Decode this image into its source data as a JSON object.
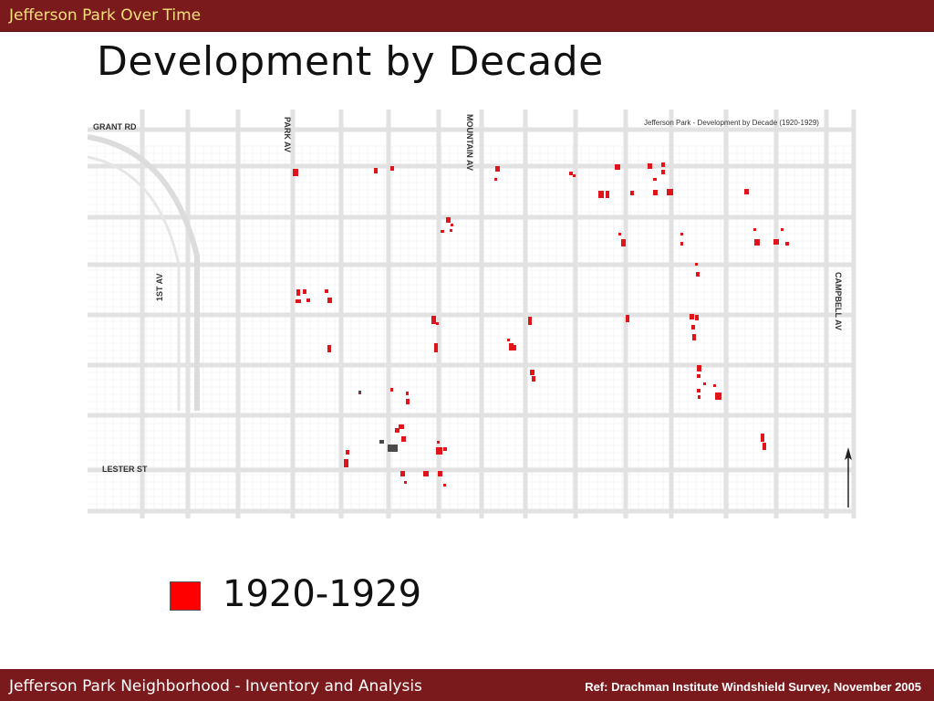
{
  "header": {
    "title": "Jefferson Park Over Time"
  },
  "slide": {
    "title": "Development by Decade"
  },
  "map": {
    "caption": "Jefferson Park - Development by Decade (1920-1929)",
    "streets": {
      "grant_rd": "GRANT RD",
      "park_av": "PARK AV",
      "mountain_av": "MOUNTAIN AV",
      "first_av": "1ST AV",
      "campbell_av": "CAMPBELL AV",
      "lester_st": "LESTER ST"
    },
    "highlight_color": "#e0151b",
    "existing_color": "#4a4a4a"
  },
  "legend": {
    "label": "1920-1929",
    "color": "#ff0000"
  },
  "footer": {
    "left": "Jefferson Park Neighborhood - Inventory and Analysis",
    "right": "Ref: Drachman Institute Windshield Survey, November 2005"
  },
  "colors": {
    "bar": "#7b1a1c",
    "header_text": "#f2e07a"
  }
}
